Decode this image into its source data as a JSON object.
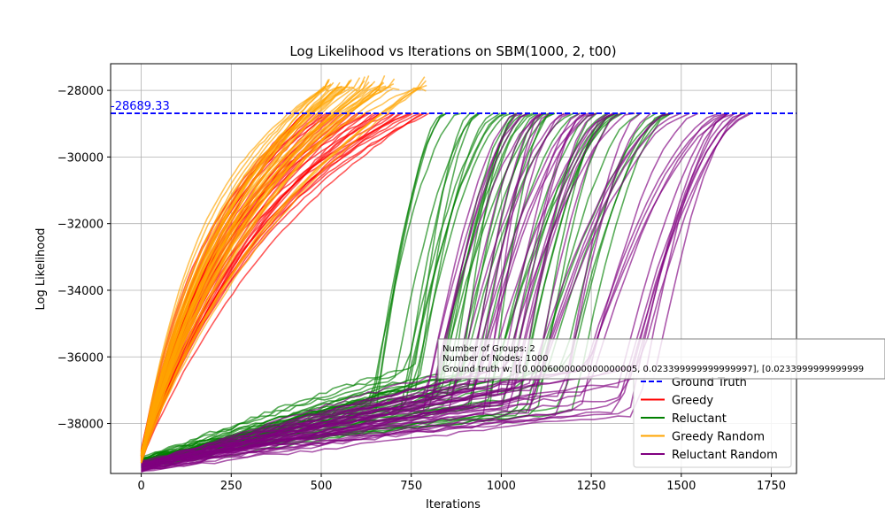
{
  "chart_data": {
    "type": "line",
    "title": "Log Likelihood vs Iterations on SBM(1000, 2, t00)",
    "xlabel": "Iterations",
    "ylabel": "Log Likelihood",
    "xlim": [
      -85,
      1820
    ],
    "ylim": [
      -39500,
      -27200
    ],
    "xticks": [
      0,
      250,
      500,
      750,
      1000,
      1250,
      1500,
      1750
    ],
    "yticks": [
      -38000,
      -36000,
      -34000,
      -32000,
      -30000,
      -28000
    ],
    "grid": true,
    "legend_position": "lower-right",
    "ground_truth": {
      "name": "Ground Truth",
      "value": -28689.33,
      "label": "-28689.33",
      "color": "#0000ff"
    },
    "series": [
      {
        "name": "Greedy",
        "color": "#ff0000",
        "runs": 40,
        "start_y": -39000,
        "end_iteration_range": [
          450,
          800
        ],
        "end_y": -28689.33
      },
      {
        "name": "Reluctant",
        "color": "#008000",
        "runs": 45,
        "start_y": -39200,
        "end_iteration_range": [
          830,
          1510
        ],
        "end_y": -28689.33
      },
      {
        "name": "Greedy Random",
        "color": "#ffa500",
        "runs": 40,
        "start_y": -39000,
        "end_iteration_range": [
          520,
          800
        ],
        "end_y": -27800
      },
      {
        "name": "Reluctant Random",
        "color": "#800080",
        "runs": 45,
        "start_y": -39300,
        "end_iteration_range": [
          1000,
          1730
        ],
        "end_y": -28689.33
      }
    ],
    "info_box": {
      "lines": [
        "Number of Groups: 2",
        "Number of Nodes: 1000",
        "Ground truth w: [[0.0006000000000000005, 0.023399999999999997], [0.0233999999999999"
      ]
    }
  }
}
